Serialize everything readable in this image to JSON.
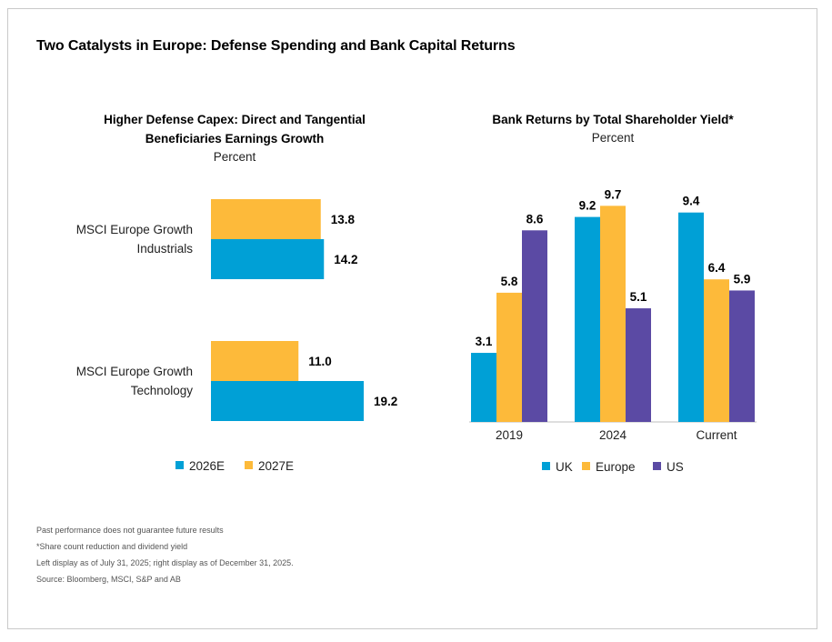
{
  "title": "Two Catalysts in Europe: Defense Spending and Bank Capital Returns",
  "colors": {
    "uk_2026": "#00a0d6",
    "europe_2027": "#fdba3a",
    "us": "#5b4aa4"
  },
  "notes": [
    "Past performance does not guarantee future results",
    "*Share count reduction and dividend yield",
    "Left display as of July 31, 2025; right display as of December 31, 2025.",
    "Source: Bloomberg, MSCI, S&P and AB"
  ],
  "chart_data": [
    {
      "type": "bar",
      "orientation": "horizontal",
      "title_lines": [
        "Higher Defense Capex: Direct and Tangential",
        "Beneficiaries Earnings Growth"
      ],
      "subtitle": "Percent",
      "categories": [
        {
          "lines": [
            "MSCI Europe Growth",
            "Industrials"
          ]
        },
        {
          "lines": [
            "MSCI Europe Growth",
            "Technology"
          ]
        }
      ],
      "series": [
        {
          "name": "2027E",
          "color": "#fdba3a",
          "values": [
            13.8,
            11.0
          ],
          "labels": [
            "13.8",
            "11.0"
          ]
        },
        {
          "name": "2026E",
          "color": "#00a0d6",
          "values": [
            14.2,
            19.2
          ],
          "labels": [
            "14.2",
            "19.2"
          ]
        }
      ],
      "legend": [
        {
          "name": "2026E",
          "color": "#00a0d6"
        },
        {
          "name": "2027E",
          "color": "#fdba3a"
        }
      ],
      "legend_position": "bottom",
      "grid": false
    },
    {
      "type": "bar",
      "orientation": "vertical",
      "title": "Bank Returns by Total Shareholder Yield*",
      "subtitle": "Percent",
      "categories": [
        "2019",
        "2024",
        "Current"
      ],
      "series": [
        {
          "name": "UK",
          "color": "#00a0d6",
          "values": [
            3.1,
            9.2,
            9.4
          ],
          "labels": [
            "3.1",
            "9.2",
            "9.4"
          ]
        },
        {
          "name": "Europe",
          "color": "#fdba3a",
          "values": [
            5.8,
            9.7,
            6.4
          ],
          "labels": [
            "5.8",
            "9.7",
            "6.4"
          ]
        },
        {
          "name": "US",
          "color": "#5b4aa4",
          "values": [
            8.6,
            5.1,
            5.9
          ],
          "labels": [
            "8.6",
            "5.1",
            "5.9"
          ]
        }
      ],
      "legend_position": "bottom",
      "grid": false
    }
  ]
}
